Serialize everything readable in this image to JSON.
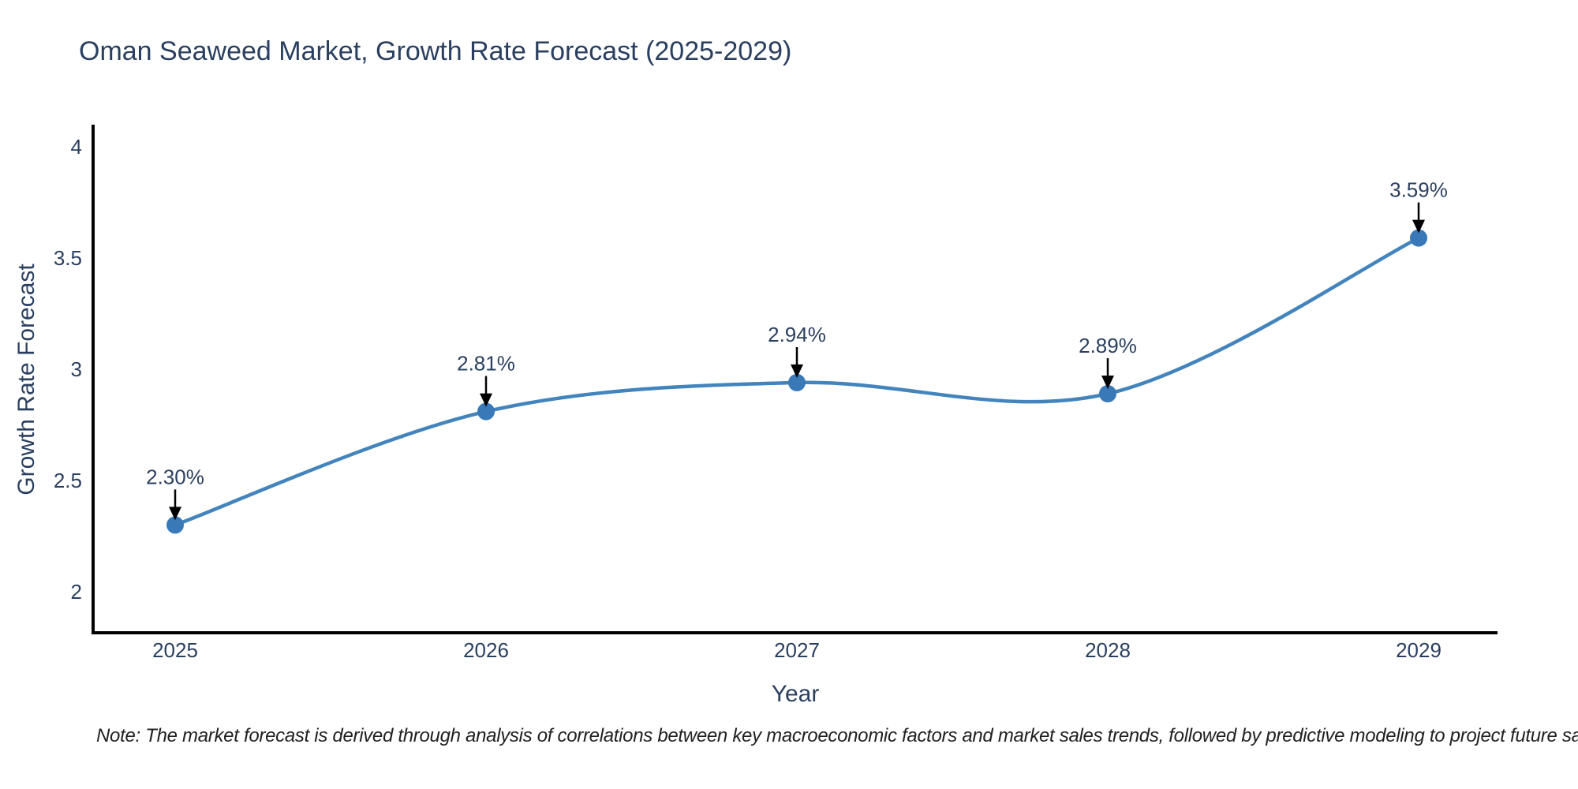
{
  "header": {
    "title": "Oman Seaweed Market, Growth Rate Forecast (2025-2029)"
  },
  "chart_data": {
    "type": "line",
    "title": "Oman Seaweed Market, Growth Rate Forecast (2025-2029)",
    "x": [
      2025,
      2026,
      2027,
      2028,
      2029
    ],
    "xtick_labels": [
      "2025",
      "2026",
      "2027",
      "2028",
      "2029"
    ],
    "series": [
      {
        "name": "Growth Rate Forecast",
        "values": [
          2.3,
          2.81,
          2.94,
          2.89,
          3.59
        ]
      }
    ],
    "point_labels": [
      "2.30%",
      "2.81%",
      "2.94%",
      "2.89%",
      "3.59%"
    ],
    "xlabel": "Year",
    "ylabel": "Growth Rate Forecast",
    "yticks": [
      2,
      2.5,
      3,
      3.5,
      4
    ],
    "ytick_labels": [
      "2",
      "2.5",
      "3",
      "3.5",
      "4"
    ],
    "ylim": [
      1.81,
      4.09
    ],
    "line_shape": "spline",
    "grid": false,
    "legend_position": "none",
    "colors": {
      "line": "#4384bd",
      "marker": "#3a79b7",
      "axis": "#000000",
      "text": "#2a3f5f",
      "arrow": "#000000",
      "note": "#212121",
      "background": "#ffffff"
    }
  },
  "footer": {
    "note": "Note: The market forecast is derived through analysis of correlations between key macroeconomic factors and market sales trends, followed by predictive modeling to project future sales"
  }
}
